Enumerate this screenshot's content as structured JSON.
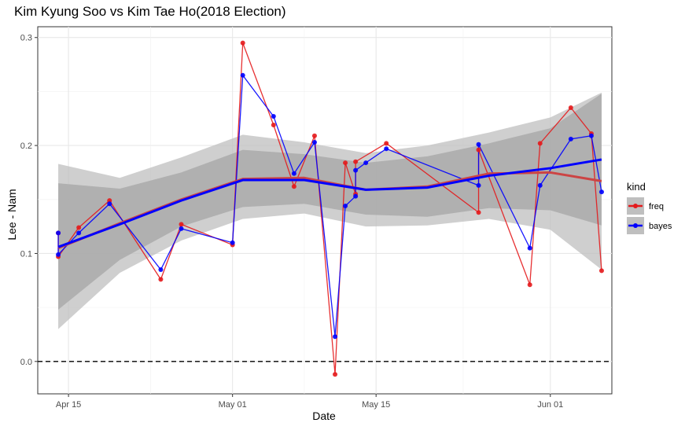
{
  "chart_data": {
    "type": "line",
    "title": "Kim Kyung Soo vs Kim Tae Ho(2018 Election)",
    "xlabel": "Date",
    "ylabel": "Lee - Nam",
    "x_axis": {
      "type": "date",
      "range": [
        "2018-04-12",
        "2018-06-07"
      ],
      "ticks": [
        {
          "date": "2018-04-15",
          "label": "Apr 15"
        },
        {
          "date": "2018-05-01",
          "label": "May 01"
        },
        {
          "date": "2018-05-15",
          "label": "May 15"
        },
        {
          "date": "2018-06-01",
          "label": "Jun 01"
        }
      ]
    },
    "y_axis": {
      "range": [
        -0.03,
        0.31
      ],
      "ticks": [
        {
          "value": 0.0,
          "label": "0.0"
        },
        {
          "value": 0.1,
          "label": "0.1"
        },
        {
          "value": 0.2,
          "label": "0.2"
        },
        {
          "value": 0.3,
          "label": "0.3"
        }
      ]
    },
    "grid": true,
    "reference_line": {
      "y": 0,
      "style": "dashed",
      "color": "#000000"
    },
    "legend": {
      "title": "kind",
      "position": "right",
      "entries": [
        {
          "label": "freq",
          "color": "#e41a1c"
        },
        {
          "label": "bayes",
          "color": "#0000ff"
        }
      ]
    },
    "series": [
      {
        "name": "freq",
        "color": "#e41a1c",
        "points": [
          {
            "x": "2018-04-14",
            "y": 0.119
          },
          {
            "x": "2018-04-14",
            "y": 0.097
          },
          {
            "x": "2018-04-16",
            "y": 0.124
          },
          {
            "x": "2018-04-19",
            "y": 0.149
          },
          {
            "x": "2018-04-24",
            "y": 0.076
          },
          {
            "x": "2018-04-26",
            "y": 0.127
          },
          {
            "x": "2018-05-01",
            "y": 0.108
          },
          {
            "x": "2018-05-02",
            "y": 0.295
          },
          {
            "x": "2018-05-05",
            "y": 0.219
          },
          {
            "x": "2018-05-07",
            "y": 0.162
          },
          {
            "x": "2018-05-09",
            "y": 0.209
          },
          {
            "x": "2018-05-11",
            "y": -0.012
          },
          {
            "x": "2018-05-12",
            "y": 0.184
          },
          {
            "x": "2018-05-13",
            "y": 0.155
          },
          {
            "x": "2018-05-13",
            "y": 0.185
          },
          {
            "x": "2018-05-16",
            "y": 0.202
          },
          {
            "x": "2018-05-25",
            "y": 0.138
          },
          {
            "x": "2018-05-25",
            "y": 0.196
          },
          {
            "x": "2018-05-30",
            "y": 0.071
          },
          {
            "x": "2018-05-31",
            "y": 0.202
          },
          {
            "x": "2018-06-03",
            "y": 0.235
          },
          {
            "x": "2018-06-05",
            "y": 0.211
          },
          {
            "x": "2018-06-06",
            "y": 0.084
          }
        ]
      },
      {
        "name": "bayes",
        "color": "#0000ff",
        "points": [
          {
            "x": "2018-04-14",
            "y": 0.119
          },
          {
            "x": "2018-04-14",
            "y": 0.099
          },
          {
            "x": "2018-04-16",
            "y": 0.119
          },
          {
            "x": "2018-04-19",
            "y": 0.146
          },
          {
            "x": "2018-04-24",
            "y": 0.085
          },
          {
            "x": "2018-04-26",
            "y": 0.123
          },
          {
            "x": "2018-05-01",
            "y": 0.11
          },
          {
            "x": "2018-05-02",
            "y": 0.265
          },
          {
            "x": "2018-05-05",
            "y": 0.227
          },
          {
            "x": "2018-05-07",
            "y": 0.174
          },
          {
            "x": "2018-05-09",
            "y": 0.203
          },
          {
            "x": "2018-05-11",
            "y": 0.023
          },
          {
            "x": "2018-05-12",
            "y": 0.144
          },
          {
            "x": "2018-05-13",
            "y": 0.153
          },
          {
            "x": "2018-05-13",
            "y": 0.177
          },
          {
            "x": "2018-05-14",
            "y": 0.184
          },
          {
            "x": "2018-05-16",
            "y": 0.197
          },
          {
            "x": "2018-05-25",
            "y": 0.163
          },
          {
            "x": "2018-05-25",
            "y": 0.201
          },
          {
            "x": "2018-05-30",
            "y": 0.105
          },
          {
            "x": "2018-05-31",
            "y": 0.163
          },
          {
            "x": "2018-06-03",
            "y": 0.206
          },
          {
            "x": "2018-06-05",
            "y": 0.209
          },
          {
            "x": "2018-06-06",
            "y": 0.157
          }
        ]
      }
    ],
    "smooth": [
      {
        "name": "freq",
        "color": "#cc4444",
        "band_color": "#bfbfbf",
        "x": [
          "2018-04-14",
          "2018-04-20",
          "2018-04-26",
          "2018-05-02",
          "2018-05-08",
          "2018-05-14",
          "2018-05-20",
          "2018-05-26",
          "2018-06-01",
          "2018-06-06"
        ],
        "y": [
          0.105,
          0.128,
          0.15,
          0.169,
          0.17,
          0.159,
          0.162,
          0.174,
          0.175,
          0.167
        ],
        "lower": [
          0.03,
          0.082,
          0.112,
          0.132,
          0.137,
          0.125,
          0.126,
          0.132,
          0.122,
          0.085
        ],
        "upper": [
          0.183,
          0.17,
          0.189,
          0.21,
          0.203,
          0.193,
          0.2,
          0.212,
          0.226,
          0.249
        ]
      },
      {
        "name": "bayes",
        "color": "#0000ff",
        "band_color": "#a6a6a6",
        "x": [
          "2018-04-14",
          "2018-04-20",
          "2018-04-26",
          "2018-05-02",
          "2018-05-08",
          "2018-05-14",
          "2018-05-20",
          "2018-05-26",
          "2018-06-01",
          "2018-06-06"
        ],
        "y": [
          0.106,
          0.127,
          0.149,
          0.168,
          0.168,
          0.159,
          0.161,
          0.172,
          0.179,
          0.187
        ],
        "lower": [
          0.048,
          0.094,
          0.125,
          0.143,
          0.146,
          0.136,
          0.134,
          0.142,
          0.14,
          0.126
        ],
        "upper": [
          0.165,
          0.16,
          0.175,
          0.196,
          0.192,
          0.184,
          0.19,
          0.202,
          0.216,
          0.248
        ]
      }
    ]
  }
}
